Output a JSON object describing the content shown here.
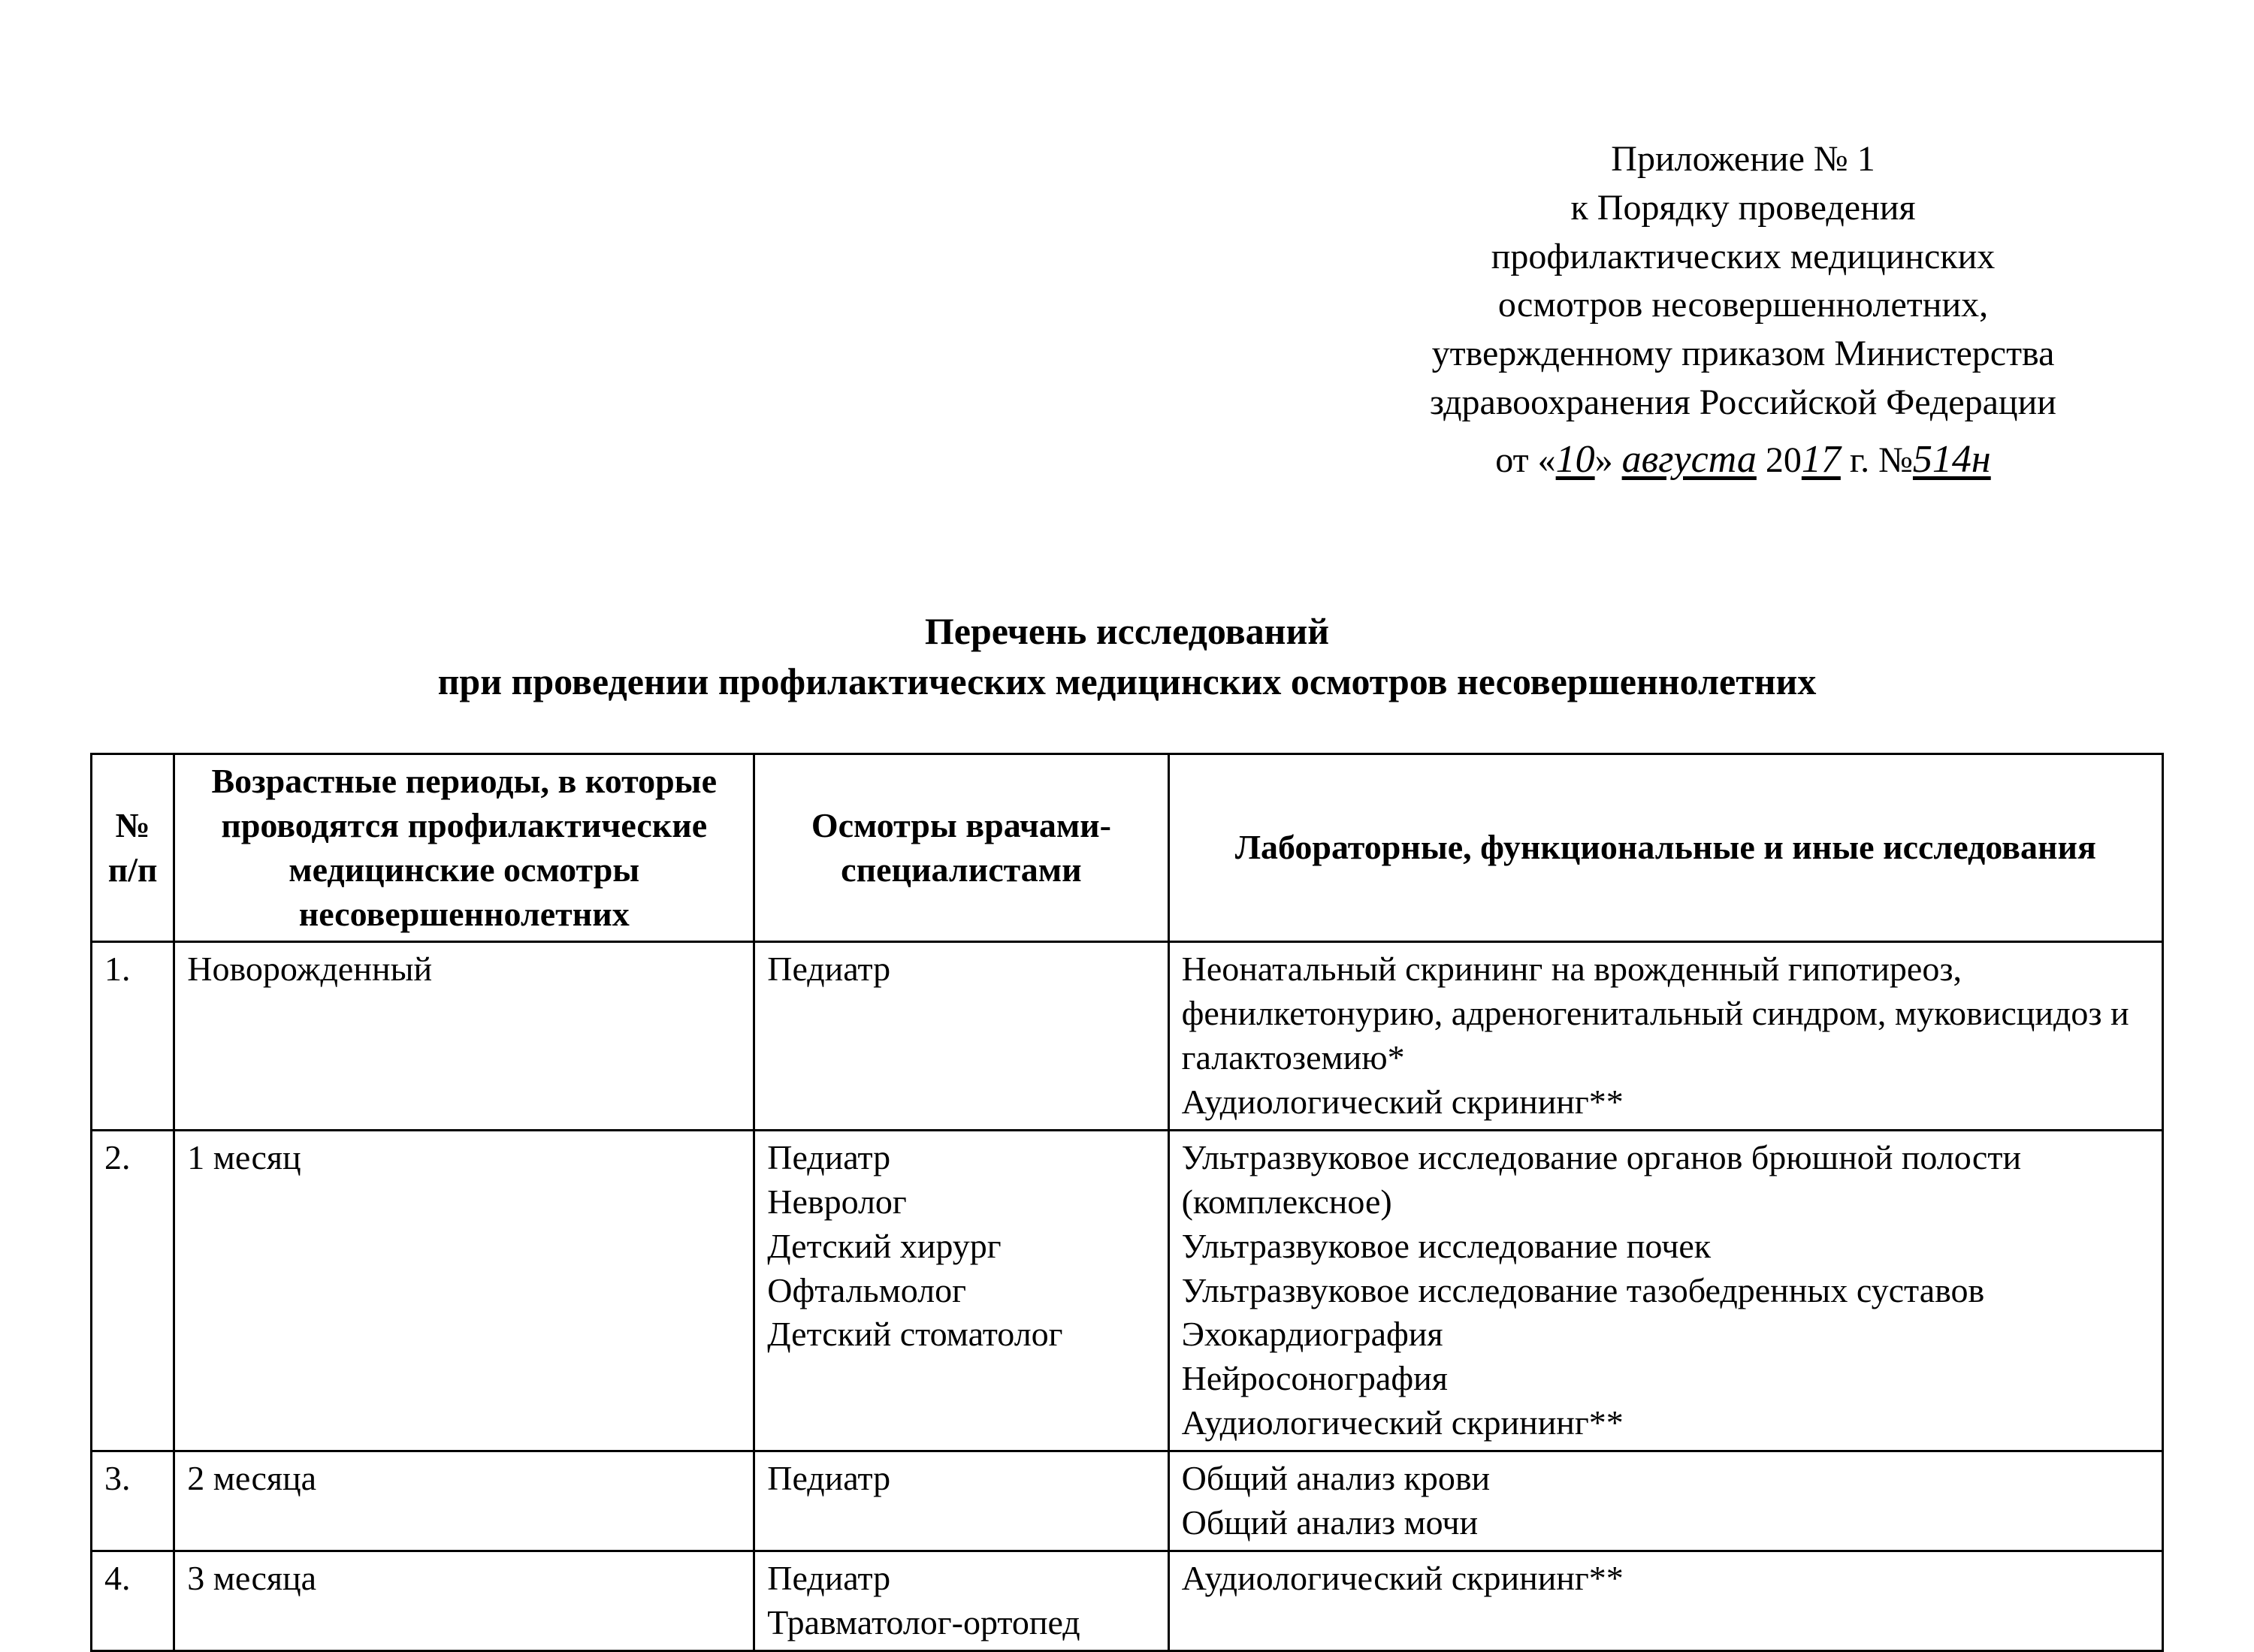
{
  "header": {
    "line1": "Приложение № 1",
    "line2": "к Порядку проведения",
    "line3": "профилактических медицинских",
    "line4": "осмотров несовершеннолетних,",
    "line5": "утвержденному приказом Министерства",
    "line6": "здравоохранения Российской Федерации",
    "date_prefix": "от «",
    "date_day": "10",
    "date_mid": "»",
    "date_month": "августа",
    "date_year_prefix": " 20",
    "date_year_suffix": "17",
    "date_tail": "  г. №",
    "order_number": "514н"
  },
  "title": {
    "line1": "Перечень исследований",
    "line2": "при проведении профилактических медицинских осмотров несовершеннолетних"
  },
  "table": {
    "columns": {
      "num": "№ п/п",
      "age": "Возрастные периоды, в которые проводятся профилактические медицинские осмотры несовершеннолетних",
      "doctors": "Осмотры врачами-специалистами",
      "tests": "Лабораторные, функциональные и иные исследования"
    },
    "rows": [
      {
        "num": "1.",
        "age": "Новорожденный",
        "doctors": "Педиатр",
        "tests": "Неонатальный скрининг на врожденный гипотиреоз, фенилкетонурию, адреногенитальный синдром, муковисцидоз и галактоземию*\nАудиологический скрининг**"
      },
      {
        "num": "2.",
        "age": "1 месяц",
        "doctors": "Педиатр\nНевролог\nДетский хирург\nОфтальмолог\nДетский стоматолог",
        "tests": "Ультразвуковое исследование органов брюшной полости (комплексное)\nУльтразвуковое исследование почек\nУльтразвуковое исследование тазобедренных суставов\nЭхокардиография\nНейросонография\nАудиологический скрининг**"
      },
      {
        "num": "3.",
        "age": "2 месяца",
        "doctors": "Педиатр",
        "tests": "Общий анализ крови\nОбщий анализ мочи"
      },
      {
        "num": "4.",
        "age": "3 месяца",
        "doctors": "Педиатр\nТравматолог-ортопед",
        "tests": "Аудиологический скрининг**"
      }
    ]
  },
  "style": {
    "background_color": "#ffffff",
    "text_color": "#000000",
    "border_color": "#000000",
    "body_fontsize": 48,
    "title_fontsize": 50,
    "table_fontsize": 46,
    "border_width": 3
  }
}
